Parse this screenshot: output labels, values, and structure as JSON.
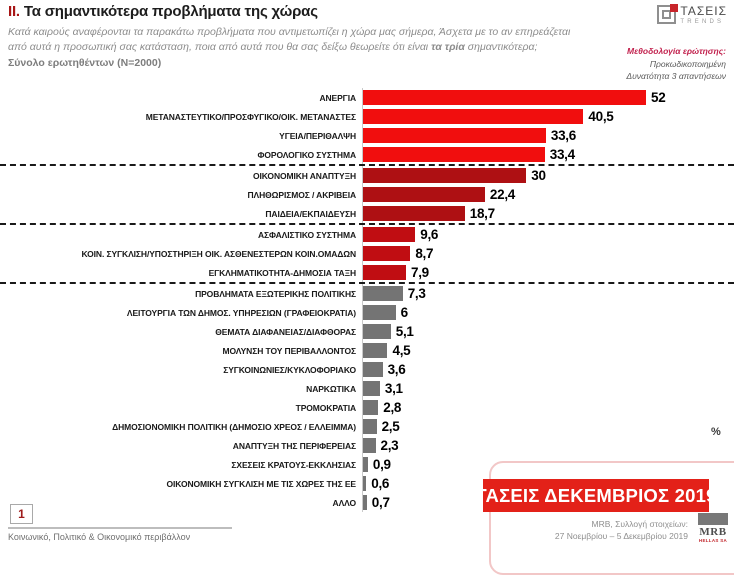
{
  "header": {
    "section_number": "II.",
    "title": "Τα σημαντικότερα προβλήματα της χώρας",
    "subtitle_line1": "Κατά καιρούς αναφέρονται τα παρακάτω προβλήματα που αντιμετωπίζει η χώρα μας σήμερα, Άσχετα με το αν επηρεάζεται",
    "subtitle_line2_pre": "από αυτά η προσωπική σας κατάσταση, ποια από αυτά που θα σας δείξω θεωρείτε ότι είναι ",
    "subtitle_line2_bold": "τα τρία",
    "subtitle_line2_post": " σημαντικότερα;",
    "sample_line": "Σύνολο ερωτηθέντων (N=2000)"
  },
  "taseis_logo": {
    "name": "ΤΑΣΕΙΣ",
    "sub": "TRENDS"
  },
  "methodology": {
    "heading": "Μεθοδολογία ερώτησης:",
    "line1": "Προκωδικοποιημένη",
    "line2": "Δυνατότητα 3 απαντήσεων"
  },
  "chart_data": {
    "type": "bar",
    "orientation": "horizontal",
    "title": "Τα σημαντικότερα προβλήματα της χώρας",
    "unit_label": "%",
    "xlim": [
      0,
      54.4
    ],
    "grid": false,
    "value_decimal_separator": ",",
    "group_colors": [
      "#f10e0e",
      "#ae1013",
      "#c00d12",
      "#747474"
    ],
    "separators_after_row_index": [
      3,
      6,
      9
    ],
    "rows": [
      {
        "label": "ΑΝΕΡΓΙΑ",
        "value": 52,
        "display": "52",
        "group": 0
      },
      {
        "label": "ΜΕΤΑΝΑΣΤΕΥΤΙΚΟ/ΠΡΟΣΦΥΓΙΚΟ/ΟΙΚ. ΜΕΤΑΝΑΣΤΕΣ",
        "value": 40.5,
        "display": "40,5",
        "group": 0
      },
      {
        "label": "ΥΓΕΙΑ/ΠΕΡΙΘΑΛΨΗ",
        "value": 33.6,
        "display": "33,6",
        "group": 0
      },
      {
        "label": "ΦΟΡΟΛΟΓΙΚΟ ΣΥΣΤΗΜΑ",
        "value": 33.4,
        "display": "33,4",
        "group": 0
      },
      {
        "label": "ΟΙΚΟΝΟΜΙΚΗ ΑΝΑΠΤΥΞΗ",
        "value": 30,
        "display": "30",
        "group": 1
      },
      {
        "label": "ΠΛΗΘΩΡΙΣΜΟΣ / ΑΚΡΙΒΕΙΑ",
        "value": 22.4,
        "display": "22,4",
        "group": 1
      },
      {
        "label": "ΠΑΙΔΕΙΑ/ΕΚΠΑΙΔΕΥΣΗ",
        "value": 18.7,
        "display": "18,7",
        "group": 1
      },
      {
        "label": "ΑΣΦΑΛΙΣΤΙΚΟ ΣΥΣΤΗΜΑ",
        "value": 9.6,
        "display": "9,6",
        "group": 2
      },
      {
        "label": "ΚΟΙΝ. ΣΥΓΚΛΙΣΗ/ΥΠΟΣΤΗΡΙΞΗ ΟΙΚ. ΑΣΘΕΝΕΣΤΕΡΩΝ ΚΟΙΝ.ΟΜΑΔΩΝ",
        "value": 8.7,
        "display": "8,7",
        "group": 2
      },
      {
        "label": "ΕΓΚΛΗΜΑΤΙΚΟΤΗΤΑ-ΔΗΜΟΣΙΑ ΤΑΞΗ",
        "value": 7.9,
        "display": "7,9",
        "group": 2
      },
      {
        "label": "ΠΡΟΒΛΗΜΑΤΑ ΕΞΩΤΕΡΙΚΗΣ ΠΟΛΙΤΙΚΗΣ",
        "value": 7.3,
        "display": "7,3",
        "group": 3
      },
      {
        "label": "ΛΕΙΤΟΥΡΓΙΑ ΤΩΝ ΔΗΜΟΣ. ΥΠΗΡΕΣΙΩΝ (ΓΡΑΦΕΙΟΚΡΑΤΙΑ)",
        "value": 6,
        "display": "6",
        "group": 3
      },
      {
        "label": "ΘΕΜΑΤΑ ΔΙΑΦΑΝΕΙΑΣ/ΔΙΑΦΘΟΡΑΣ",
        "value": 5.1,
        "display": "5,1",
        "group": 3
      },
      {
        "label": "ΜΟΛΥΝΣΗ ΤΟΥ ΠΕΡΙΒΑΛΛΟΝΤΟΣ",
        "value": 4.5,
        "display": "4,5",
        "group": 3
      },
      {
        "label": "ΣΥΓΚΟΙΝΩΝΙΕΣ/ΚΥΚΛΟΦΟΡΙΑΚΟ",
        "value": 3.6,
        "display": "3,6",
        "group": 3
      },
      {
        "label": "ΝΑΡΚΩΤΙΚΑ",
        "value": 3.1,
        "display": "3,1",
        "group": 3
      },
      {
        "label": "ΤΡΟΜΟΚΡΑΤΙΑ",
        "value": 2.8,
        "display": "2,8",
        "group": 3
      },
      {
        "label": "ΔΗΜΟΣΙΟΝΟΜΙΚΗ ΠΟΛΙΤΙΚΗ (ΔΗΜΟΣΙΟ ΧΡΕΟΣ / ΕΛΛΕΙΜΜΑ)",
        "value": 2.5,
        "display": "2,5",
        "group": 3
      },
      {
        "label": "ΑΝΑΠΤΥΞΗ ΤΗΣ ΠΕΡΙΦΕΡΕΙΑΣ",
        "value": 2.3,
        "display": "2,3",
        "group": 3
      },
      {
        "label": "ΣΧΕΣΕΙΣ ΚΡΑΤΟΥΣ-ΕΚΚΛΗΣΙΑΣ",
        "value": 0.9,
        "display": "0,9",
        "group": 3
      },
      {
        "label": "ΟΙΚΟΝΟΜΙΚΗ ΣΥΓΚΛΙΣΗ ΜΕ ΤΙΣ ΧΩΡΕΣ ΤΗΣ ΕΕ",
        "value": 0.6,
        "display": "0,6",
        "group": 3
      },
      {
        "label": "ΑΛΛΟ",
        "value": 0.7,
        "display": "0,7",
        "group": 3
      }
    ]
  },
  "footer": {
    "page_number": "1",
    "caption": "Κοινωνικό, Πολιτικό & Οικονομικό περιβάλλον",
    "banner": "ΤΑΣΕΙΣ ΔΕΚΕΜΒΡΙΟΣ 2019",
    "banner_color": "#e32119",
    "collection_line1": "MRB, Συλλογή στοιχείων:",
    "collection_line2": "27 Νοεμβρίου – 5 Δεκεμβρίου 2019",
    "mrb_logo_text": "MRB",
    "mrb_logo_sub": "HELLAS SA"
  }
}
